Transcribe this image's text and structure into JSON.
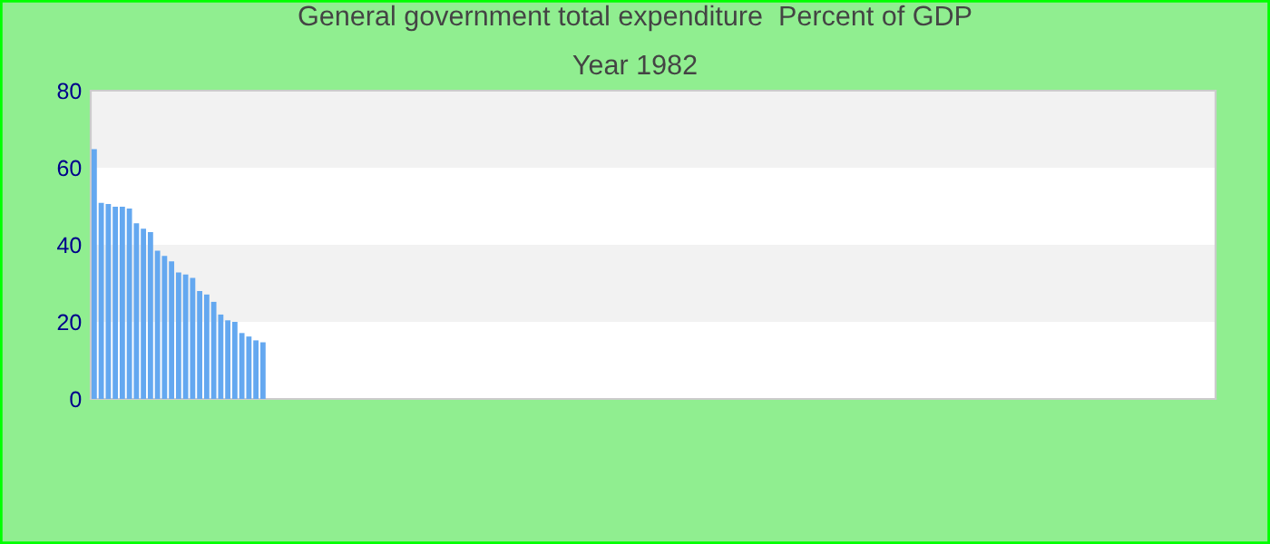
{
  "chart_data": {
    "type": "bar",
    "title": "General government total expenditure  Percent of GDP",
    "subtitle": "Year 1982",
    "categories": [
      null,
      null,
      null,
      null,
      null,
      null,
      null,
      null,
      null,
      null,
      null,
      null,
      null,
      null,
      null,
      null,
      null,
      null,
      null,
      null,
      null,
      null,
      null,
      null,
      null,
      null,
      null,
      null,
      null,
      null,
      null,
      null,
      null,
      null,
      null,
      null,
      null,
      null,
      null,
      null,
      null,
      null,
      null,
      null,
      null,
      null,
      null,
      null,
      null,
      null,
      null,
      null,
      null,
      null,
      null,
      null,
      null,
      null,
      null,
      null,
      null,
      null,
      null,
      null,
      null,
      null,
      null,
      null,
      null,
      null,
      null,
      null,
      null,
      null,
      null,
      null,
      null,
      null,
      null,
      null,
      null,
      null,
      null,
      null,
      null,
      null,
      null,
      null,
      null,
      null,
      null,
      null,
      null,
      null,
      null,
      null,
      null,
      null,
      null,
      null,
      null,
      null,
      null,
      null,
      null,
      null,
      null,
      null,
      null,
      null,
      null,
      null,
      null,
      null,
      null,
      null,
      null,
      null,
      null,
      null,
      null,
      null,
      null,
      null,
      null,
      null,
      null,
      null,
      null,
      null,
      null,
      null,
      null,
      null,
      null,
      null,
      null,
      null,
      null,
      null,
      null,
      null,
      null,
      null,
      null,
      null,
      null,
      null,
      null,
      null,
      null,
      null,
      null,
      null,
      null,
      null,
      null,
      null,
      null,
      null
    ],
    "values": [
      64.8,
      50.9,
      50.6,
      49.9,
      49.9,
      49.4,
      45.6,
      44.2,
      43.3,
      38.5,
      37.1,
      35.7,
      32.8,
      32.3,
      31.4,
      28.0,
      27.1,
      25.2,
      21.9,
      20.4,
      20.0,
      17.1,
      16.2,
      15.2,
      14.7,
      null,
      null,
      null,
      null,
      null,
      null,
      null,
      null,
      null,
      null,
      null,
      null,
      null,
      null,
      null,
      null,
      null,
      null,
      null,
      null,
      null,
      null,
      null,
      null,
      null,
      null,
      null,
      null,
      null,
      null,
      null,
      null,
      null,
      null,
      null,
      null,
      null,
      null,
      null,
      null,
      null,
      null,
      null,
      null,
      null,
      null,
      null,
      null,
      null,
      null,
      null,
      null,
      null,
      null,
      null,
      null,
      null,
      null,
      null,
      null,
      null,
      null,
      null,
      null,
      null,
      null,
      null,
      null,
      null,
      null,
      null,
      null,
      null,
      null,
      null,
      null,
      null,
      null,
      null,
      null,
      null,
      null,
      null,
      null,
      null,
      null,
      null,
      null,
      null,
      null,
      null,
      null,
      null,
      null,
      null,
      null,
      null,
      null,
      null,
      null,
      null,
      null,
      null,
      null,
      null,
      null,
      null,
      null,
      null,
      null,
      null,
      null,
      null,
      null,
      null,
      null,
      null,
      null,
      null,
      null,
      null,
      null,
      null,
      null,
      null,
      null,
      null,
      null,
      null,
      null,
      null,
      null,
      null,
      null,
      null
    ],
    "color": "#64a8f0",
    "ylim": [
      0,
      80
    ],
    "yticks": [
      0,
      20,
      40,
      60,
      80
    ],
    "bands": [
      {
        "axis": "y",
        "from": 20,
        "to": 40,
        "color": "#f2f2f2"
      },
      {
        "axis": "y",
        "from": 60,
        "to": 80,
        "color": "#f2f2f2"
      }
    ]
  }
}
